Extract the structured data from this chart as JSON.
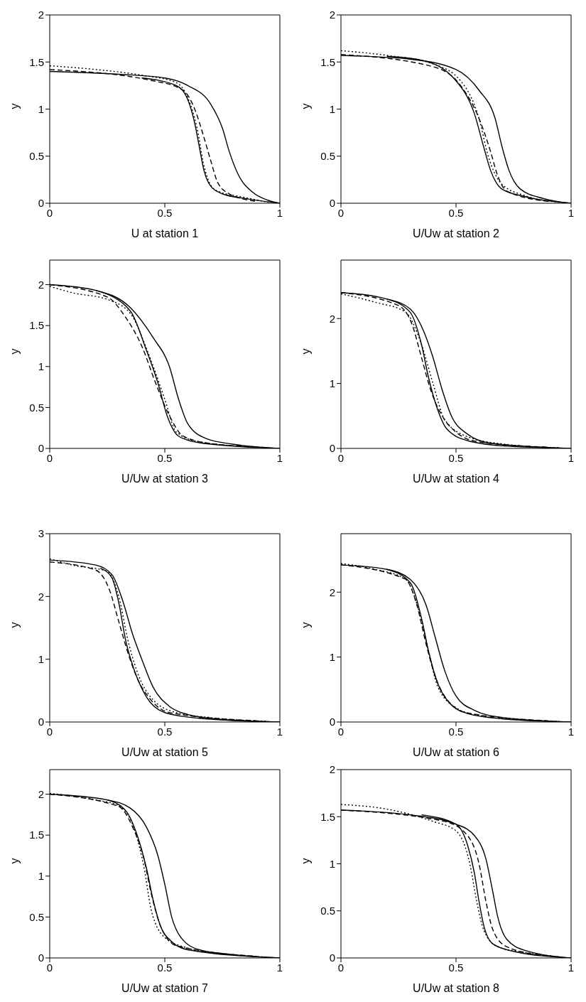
{
  "chart_data": [
    {
      "type": "line",
      "xlabel": "U at station 1",
      "ylabel": "y",
      "xlim": [
        0,
        1
      ],
      "xticks": [
        0,
        0.5,
        1
      ],
      "ylim": [
        0,
        2
      ],
      "yticks": [
        0,
        0.5,
        1,
        1.5,
        2
      ],
      "series": [
        {
          "color": "#000000",
          "line_style": "solid",
          "x": [
            0,
            0.3,
            0.5,
            0.6,
            0.7,
            0.75,
            0.78,
            0.82,
            0.88,
            0.95,
            1
          ],
          "values": [
            1.4,
            1.37,
            1.33,
            1.25,
            1.05,
            0.8,
            0.55,
            0.3,
            0.12,
            0.03,
            0
          ]
        },
        {
          "color": "#000000",
          "line_style": "solid",
          "x": [
            0.4,
            0.55,
            0.6,
            0.63,
            0.65,
            0.67,
            0.7,
            0.75,
            0.85,
            1
          ],
          "values": [
            1.33,
            1.25,
            1.1,
            0.85,
            0.6,
            0.35,
            0.18,
            0.1,
            0.05,
            0
          ]
        },
        {
          "color": "#000000",
          "line_style": "dashed",
          "x": [
            0,
            0.45,
            0.58,
            0.63,
            0.67,
            0.7,
            0.73,
            0.78,
            0.9
          ],
          "values": [
            1.42,
            1.3,
            1.2,
            1.0,
            0.7,
            0.45,
            0.22,
            0.1,
            0.02
          ]
        },
        {
          "color": "#000000",
          "line_style": "dotted",
          "x": [
            0,
            0.2,
            0.4,
            0.55,
            0.6,
            0.64,
            0.67,
            0.72,
            0.85,
            0.95
          ],
          "values": [
            1.46,
            1.42,
            1.36,
            1.28,
            1.12,
            0.8,
            0.4,
            0.14,
            0.06,
            0.01
          ]
        }
      ]
    },
    {
      "type": "line",
      "xlabel": "U/Uw at station 2",
      "ylabel": "y",
      "xlim": [
        0,
        1
      ],
      "xticks": [
        0,
        0.5,
        1
      ],
      "ylim": [
        0,
        2
      ],
      "yticks": [
        0,
        0.5,
        1,
        1.5,
        2
      ],
      "series": [
        {
          "color": "#000000",
          "line_style": "solid",
          "x": [
            0,
            0.3,
            0.5,
            0.6,
            0.67,
            0.7,
            0.73,
            0.78,
            0.88,
            1
          ],
          "values": [
            1.57,
            1.53,
            1.42,
            1.2,
            0.9,
            0.6,
            0.35,
            0.15,
            0.05,
            0
          ]
        },
        {
          "color": "#000000",
          "line_style": "solid",
          "x": [
            0.2,
            0.35,
            0.5,
            0.58,
            0.62,
            0.65,
            0.7,
            0.8,
            1
          ],
          "values": [
            1.56,
            1.52,
            1.3,
            0.95,
            0.6,
            0.35,
            0.15,
            0.07,
            0
          ]
        },
        {
          "color": "#000000",
          "line_style": "dashed",
          "x": [
            0,
            0.4,
            0.52,
            0.6,
            0.65,
            0.68,
            0.72,
            0.9
          ],
          "values": [
            1.58,
            1.45,
            1.25,
            0.9,
            0.55,
            0.3,
            0.13,
            0.02
          ]
        },
        {
          "color": "#000000",
          "line_style": "dotted",
          "x": [
            0,
            0.2,
            0.4,
            0.52,
            0.6,
            0.64,
            0.7,
            0.8,
            0.95
          ],
          "values": [
            1.62,
            1.57,
            1.48,
            1.3,
            0.9,
            0.5,
            0.2,
            0.08,
            0.01
          ]
        }
      ]
    },
    {
      "type": "line",
      "xlabel": "U/Uw at station 3",
      "ylabel": "y",
      "xlim": [
        0,
        1
      ],
      "xticks": [
        0,
        0.5,
        1
      ],
      "ylim": [
        0,
        2.3
      ],
      "yticks": [
        0,
        0.5,
        1,
        1.5,
        2
      ],
      "series": [
        {
          "color": "#000000",
          "line_style": "solid",
          "x": [
            0,
            0.2,
            0.35,
            0.45,
            0.52,
            0.56,
            0.6,
            0.68,
            0.8,
            1
          ],
          "values": [
            2.0,
            1.93,
            1.72,
            1.35,
            1.0,
            0.6,
            0.3,
            0.12,
            0.05,
            0
          ]
        },
        {
          "color": "#000000",
          "line_style": "solid",
          "x": [
            0.2,
            0.35,
            0.42,
            0.47,
            0.51,
            0.56,
            0.65,
            1
          ],
          "values": [
            1.93,
            1.68,
            1.2,
            0.8,
            0.4,
            0.15,
            0.07,
            0
          ]
        },
        {
          "color": "#000000",
          "line_style": "dashed",
          "x": [
            0,
            0.25,
            0.33,
            0.4,
            0.46,
            0.52,
            0.58,
            0.7,
            0.9
          ],
          "values": [
            2.0,
            1.85,
            1.6,
            1.25,
            0.8,
            0.4,
            0.15,
            0.06,
            0.02
          ]
        },
        {
          "color": "#000000",
          "line_style": "dotted",
          "x": [
            0,
            0.1,
            0.25,
            0.35,
            0.43,
            0.5,
            0.55,
            0.65,
            0.95
          ],
          "values": [
            1.98,
            1.9,
            1.82,
            1.65,
            1.15,
            0.6,
            0.2,
            0.08,
            0.01
          ]
        }
      ]
    },
    {
      "type": "line",
      "xlabel": "U/Uw at station 4",
      "ylabel": "y",
      "xlim": [
        0,
        1
      ],
      "xticks": [
        0,
        0.5,
        1
      ],
      "ylim": [
        0,
        2.9
      ],
      "yticks": [
        0,
        1,
        2
      ],
      "series": [
        {
          "color": "#000000",
          "line_style": "solid",
          "x": [
            0,
            0.2,
            0.3,
            0.36,
            0.4,
            0.44,
            0.48,
            0.55,
            0.65,
            1
          ],
          "values": [
            2.4,
            2.3,
            2.15,
            1.8,
            1.4,
            0.9,
            0.5,
            0.22,
            0.08,
            0
          ]
        },
        {
          "color": "#000000",
          "line_style": "solid",
          "x": [
            0.2,
            0.3,
            0.35,
            0.38,
            0.42,
            0.46,
            0.55,
            0.7,
            1
          ],
          "values": [
            2.3,
            2.1,
            1.6,
            1.1,
            0.6,
            0.3,
            0.12,
            0.04,
            0
          ]
        },
        {
          "color": "#000000",
          "line_style": "dashed",
          "x": [
            0,
            0.25,
            0.31,
            0.35,
            0.39,
            0.44,
            0.5,
            0.6,
            0.9
          ],
          "values": [
            2.4,
            2.2,
            1.9,
            1.4,
            0.9,
            0.5,
            0.25,
            0.1,
            0.02
          ]
        },
        {
          "color": "#000000",
          "line_style": "dotted",
          "x": [
            0,
            0.15,
            0.28,
            0.35,
            0.4,
            0.45,
            0.55,
            0.7,
            0.95
          ],
          "values": [
            2.38,
            2.25,
            2.1,
            1.6,
            1.0,
            0.45,
            0.18,
            0.07,
            0.01
          ]
        }
      ]
    },
    {
      "type": "line",
      "xlabel": "U/Uw at station 5",
      "ylabel": "y",
      "xlim": [
        0,
        1
      ],
      "xticks": [
        0,
        0.5,
        1
      ],
      "ylim": [
        0,
        3
      ],
      "yticks": [
        0,
        1,
        2,
        3
      ],
      "series": [
        {
          "color": "#000000",
          "line_style": "solid",
          "x": [
            0,
            0.2,
            0.27,
            0.32,
            0.36,
            0.4,
            0.45,
            0.52,
            0.6,
            0.75,
            1
          ],
          "values": [
            2.58,
            2.5,
            2.35,
            1.9,
            1.4,
            1.0,
            0.55,
            0.25,
            0.12,
            0.04,
            0
          ]
        },
        {
          "color": "#000000",
          "line_style": "solid",
          "x": [
            0.22,
            0.27,
            0.3,
            0.33,
            0.37,
            0.42,
            0.5,
            0.65,
            1
          ],
          "values": [
            2.45,
            2.3,
            1.9,
            1.3,
            0.8,
            0.4,
            0.15,
            0.06,
            0
          ]
        },
        {
          "color": "#000000",
          "line_style": "dashed",
          "x": [
            0,
            0.2,
            0.26,
            0.3,
            0.34,
            0.38,
            0.44,
            0.52,
            0.9
          ],
          "values": [
            2.55,
            2.42,
            2.1,
            1.6,
            1.1,
            0.7,
            0.35,
            0.15,
            0.02
          ]
        },
        {
          "color": "#000000",
          "line_style": "dotted",
          "x": [
            0,
            0.1,
            0.25,
            0.3,
            0.34,
            0.38,
            0.45,
            0.55,
            0.7,
            0.95
          ],
          "values": [
            2.6,
            2.5,
            2.4,
            2.0,
            1.3,
            0.8,
            0.35,
            0.15,
            0.07,
            0.01
          ]
        }
      ]
    },
    {
      "type": "line",
      "xlabel": "U/Uw at station 6",
      "ylabel": "y",
      "xlim": [
        0,
        1
      ],
      "xticks": [
        0,
        0.5,
        1
      ],
      "ylim": [
        0,
        2.9
      ],
      "yticks": [
        0,
        1,
        2
      ],
      "series": [
        {
          "color": "#000000",
          "line_style": "solid",
          "x": [
            0,
            0.2,
            0.3,
            0.37,
            0.41,
            0.45,
            0.5,
            0.58,
            0.7,
            1
          ],
          "values": [
            2.42,
            2.35,
            2.2,
            1.8,
            1.3,
            0.8,
            0.4,
            0.18,
            0.07,
            0
          ]
        },
        {
          "color": "#000000",
          "line_style": "solid",
          "x": [
            0.2,
            0.3,
            0.35,
            0.38,
            0.42,
            0.47,
            0.55,
            0.7,
            1
          ],
          "values": [
            2.35,
            2.15,
            1.6,
            1.1,
            0.6,
            0.3,
            0.13,
            0.05,
            0
          ]
        },
        {
          "color": "#000000",
          "line_style": "dashed",
          "x": [
            0,
            0.28,
            0.33,
            0.37,
            0.41,
            0.46,
            0.55,
            0.9
          ],
          "values": [
            2.42,
            2.2,
            1.8,
            1.2,
            0.7,
            0.35,
            0.14,
            0.02
          ]
        },
        {
          "color": "#000000",
          "line_style": "dotted",
          "x": [
            0,
            0.15,
            0.28,
            0.34,
            0.38,
            0.42,
            0.5,
            0.6,
            0.8,
            0.95
          ],
          "values": [
            2.44,
            2.35,
            2.2,
            1.7,
            1.1,
            0.55,
            0.22,
            0.1,
            0.03,
            0.01
          ]
        }
      ]
    },
    {
      "type": "line",
      "xlabel": "U/Uw at station 7",
      "ylabel": "y",
      "xlim": [
        0,
        1
      ],
      "xticks": [
        0,
        0.5,
        1
      ],
      "ylim": [
        0,
        2.3
      ],
      "yticks": [
        0,
        0.5,
        1,
        1.5,
        2
      ],
      "series": [
        {
          "color": "#000000",
          "line_style": "solid",
          "x": [
            0,
            0.25,
            0.35,
            0.42,
            0.47,
            0.5,
            0.53,
            0.57,
            0.65,
            0.8,
            1
          ],
          "values": [
            2.0,
            1.93,
            1.83,
            1.6,
            1.25,
            0.9,
            0.5,
            0.25,
            0.1,
            0.04,
            0
          ]
        },
        {
          "color": "#000000",
          "line_style": "solid",
          "x": [
            0.25,
            0.33,
            0.38,
            0.42,
            0.45,
            0.48,
            0.53,
            0.6,
            1
          ],
          "values": [
            1.93,
            1.8,
            1.5,
            1.1,
            0.7,
            0.4,
            0.2,
            0.1,
            0
          ]
        },
        {
          "color": "#000000",
          "line_style": "dashed",
          "x": [
            0,
            0.3,
            0.36,
            0.41,
            0.44,
            0.48,
            0.55,
            0.9
          ],
          "values": [
            2.0,
            1.85,
            1.6,
            1.2,
            0.8,
            0.4,
            0.15,
            0.02
          ]
        },
        {
          "color": "#000000",
          "line_style": "dotted",
          "x": [
            0,
            0.2,
            0.3,
            0.37,
            0.41,
            0.44,
            0.5,
            0.6,
            0.75,
            0.95
          ],
          "values": [
            2.01,
            1.93,
            1.86,
            1.55,
            1.1,
            0.6,
            0.25,
            0.12,
            0.05,
            0.01
          ]
        }
      ]
    },
    {
      "type": "line",
      "xlabel": "U/Uw at station 8",
      "ylabel": "y",
      "xlim": [
        0,
        1
      ],
      "xticks": [
        0,
        0.5,
        1
      ],
      "ylim": [
        0,
        2
      ],
      "yticks": [
        0,
        0.5,
        1,
        1.5,
        2
      ],
      "series": [
        {
          "color": "#000000",
          "line_style": "solid",
          "x": [
            0,
            0.3,
            0.5,
            0.58,
            0.63,
            0.66,
            0.68,
            0.72,
            0.8,
            1
          ],
          "values": [
            1.57,
            1.52,
            1.42,
            1.3,
            1.05,
            0.7,
            0.45,
            0.2,
            0.08,
            0
          ]
        },
        {
          "color": "#000000",
          "line_style": "solid",
          "x": [
            0.35,
            0.5,
            0.55,
            0.58,
            0.6,
            0.62,
            0.66,
            0.75,
            1
          ],
          "values": [
            1.52,
            1.42,
            1.2,
            0.9,
            0.6,
            0.35,
            0.15,
            0.07,
            0
          ]
        },
        {
          "color": "#000000",
          "line_style": "dashed",
          "x": [
            0,
            0.45,
            0.55,
            0.6,
            0.63,
            0.66,
            0.72,
            0.9
          ],
          "values": [
            1.57,
            1.45,
            1.3,
            1.0,
            0.6,
            0.3,
            0.12,
            0.02
          ]
        },
        {
          "color": "#000000",
          "line_style": "dotted",
          "x": [
            0,
            0.2,
            0.4,
            0.5,
            0.56,
            0.59,
            0.62,
            0.68,
            0.8,
            0.95
          ],
          "values": [
            1.63,
            1.58,
            1.45,
            1.35,
            1.0,
            0.6,
            0.3,
            0.12,
            0.06,
            0.01
          ]
        }
      ]
    }
  ]
}
